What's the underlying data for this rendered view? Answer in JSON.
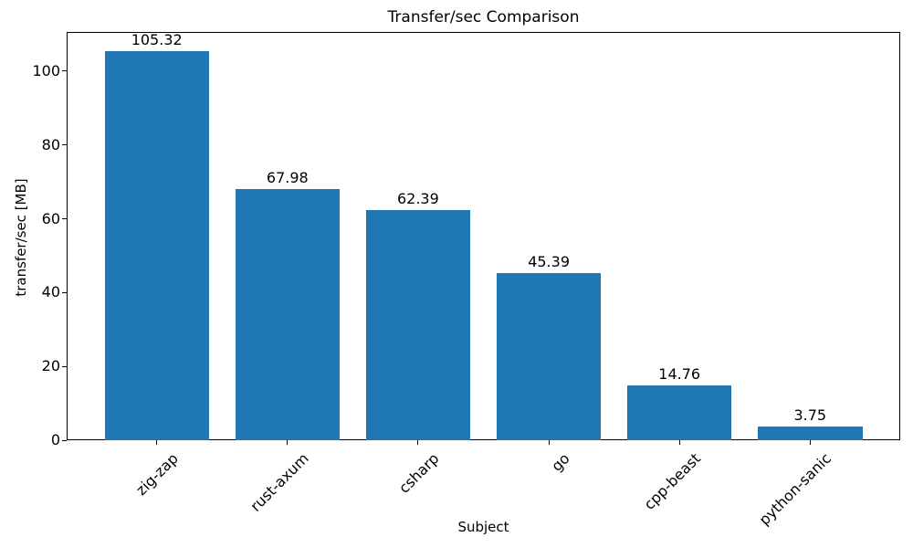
{
  "chart_data": {
    "type": "bar",
    "title": "Transfer/sec Comparison",
    "xlabel": "Subject",
    "ylabel": "transfer/sec [MB]",
    "categories": [
      "zig-zap",
      "rust-axum",
      "csharp",
      "go",
      "cpp-beast",
      "python-sanic"
    ],
    "values": [
      105.32,
      67.98,
      62.39,
      45.39,
      14.76,
      3.75
    ],
    "value_labels": [
      "105.32",
      "67.98",
      "62.39",
      "45.39",
      "14.76",
      "3.75"
    ],
    "yticks": [
      0,
      20,
      40,
      60,
      80,
      100
    ],
    "ylim": [
      0,
      110.6
    ],
    "xlim": [
      -0.69,
      5.69
    ],
    "bar_rel_width": 0.8,
    "bar_color": "#1f77b4",
    "axis_color": "#000000",
    "text_color": "#000000",
    "grid": "off",
    "legend": "none"
  }
}
